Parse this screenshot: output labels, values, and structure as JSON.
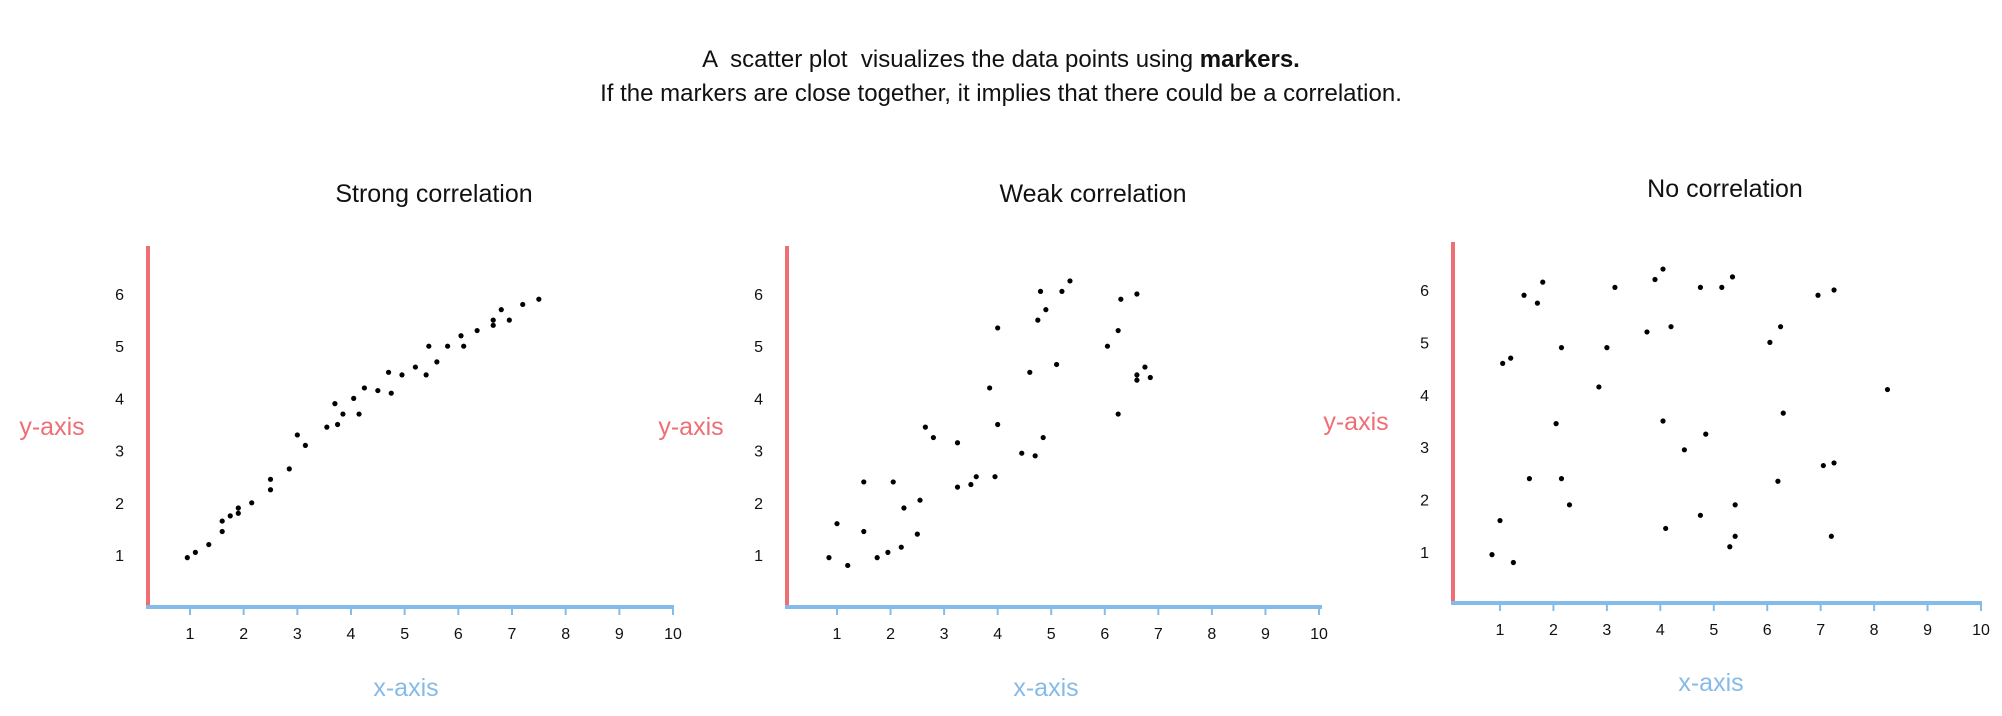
{
  "header": {
    "line1_prefix": "A  scatter plot  visualizes the data points using ",
    "line1_bold": "markers.",
    "line2": "If the markers are close together, it implies that there could be a correlation."
  },
  "colors": {
    "y_axis": "#ee6e73",
    "x_axis": "#85bbe9",
    "marker": "#000000",
    "text": "#111111"
  },
  "chart_data": [
    {
      "type": "scatter",
      "title": "Strong correlation",
      "xlabel": "x-axis",
      "ylabel": "y-axis",
      "xlim": [
        0.2,
        10
      ],
      "ylim": [
        0,
        6.6
      ],
      "xticks": [
        1,
        2,
        3,
        4,
        5,
        6,
        7,
        8,
        9,
        10
      ],
      "yticks": [
        1,
        2,
        3,
        4,
        5,
        6
      ],
      "grid": false,
      "points": [
        [
          0.95,
          0.95
        ],
        [
          1.1,
          1.05
        ],
        [
          1.35,
          1.2
        ],
        [
          1.6,
          1.45
        ],
        [
          1.6,
          1.65
        ],
        [
          1.75,
          1.75
        ],
        [
          1.9,
          1.8
        ],
        [
          1.9,
          1.9
        ],
        [
          2.15,
          2.0
        ],
        [
          2.5,
          2.25
        ],
        [
          2.5,
          2.45
        ],
        [
          2.85,
          2.65
        ],
        [
          3.0,
          3.3
        ],
        [
          3.15,
          3.1
        ],
        [
          3.55,
          3.45
        ],
        [
          3.7,
          3.9
        ],
        [
          3.75,
          3.5
        ],
        [
          3.85,
          3.7
        ],
        [
          4.05,
          4.0
        ],
        [
          4.15,
          3.7
        ],
        [
          4.25,
          4.2
        ],
        [
          4.5,
          4.15
        ],
        [
          4.7,
          4.5
        ],
        [
          4.75,
          4.1
        ],
        [
          4.95,
          4.45
        ],
        [
          5.2,
          4.6
        ],
        [
          5.4,
          4.45
        ],
        [
          5.45,
          5.0
        ],
        [
          5.6,
          4.7
        ],
        [
          5.8,
          5.0
        ],
        [
          6.05,
          5.2
        ],
        [
          6.1,
          5.0
        ],
        [
          6.35,
          5.3
        ],
        [
          6.65,
          5.4
        ],
        [
          6.65,
          5.5
        ],
        [
          6.8,
          5.7
        ],
        [
          6.95,
          5.5
        ],
        [
          7.2,
          5.8
        ],
        [
          7.5,
          5.9
        ]
      ]
    },
    {
      "type": "scatter",
      "title": "Weak correlation",
      "xlabel": "x-axis",
      "ylabel": "y-axis",
      "xlim": [
        0.2,
        10
      ],
      "ylim": [
        0,
        6.6
      ],
      "xticks": [
        1,
        2,
        3,
        4,
        5,
        6,
        7,
        8,
        9,
        10
      ],
      "yticks": [
        1,
        2,
        3,
        4,
        5,
        6
      ],
      "grid": false,
      "points": [
        [
          0.85,
          0.95
        ],
        [
          1.0,
          1.6
        ],
        [
          1.2,
          0.8
        ],
        [
          1.5,
          2.4
        ],
        [
          1.5,
          1.45
        ],
        [
          1.75,
          0.95
        ],
        [
          1.95,
          1.05
        ],
        [
          2.05,
          2.4
        ],
        [
          2.2,
          1.15
        ],
        [
          2.25,
          1.9
        ],
        [
          2.55,
          2.05
        ],
        [
          2.5,
          1.4
        ],
        [
          2.65,
          3.45
        ],
        [
          2.8,
          3.25
        ],
        [
          3.25,
          3.15
        ],
        [
          3.25,
          2.3
        ],
        [
          3.5,
          2.35
        ],
        [
          3.6,
          2.5
        ],
        [
          3.85,
          4.2
        ],
        [
          3.95,
          2.5
        ],
        [
          4.0,
          3.5
        ],
        [
          4.0,
          5.35
        ],
        [
          4.45,
          2.95
        ],
        [
          4.6,
          4.5
        ],
        [
          4.7,
          2.9
        ],
        [
          4.75,
          5.5
        ],
        [
          4.8,
          6.05
        ],
        [
          4.85,
          3.25
        ],
        [
          4.9,
          5.7
        ],
        [
          5.1,
          4.65
        ],
        [
          5.2,
          6.05
        ],
        [
          5.35,
          6.25
        ],
        [
          6.05,
          5.0
        ],
        [
          6.25,
          5.3
        ],
        [
          6.25,
          3.7
        ],
        [
          6.3,
          5.9
        ],
        [
          6.6,
          6.0
        ],
        [
          6.6,
          4.35
        ],
        [
          6.6,
          4.45
        ],
        [
          6.75,
          4.6
        ],
        [
          6.85,
          4.4
        ]
      ]
    },
    {
      "type": "scatter",
      "title": "No correlation",
      "xlabel": "x-axis",
      "ylabel": "y-axis",
      "xlim": [
        0.1,
        10
      ],
      "ylim": [
        0,
        6.6
      ],
      "xticks": [
        1,
        2,
        3,
        4,
        5,
        6,
        7,
        8,
        9,
        10
      ],
      "yticks": [
        1,
        2,
        3,
        4,
        5,
        6
      ],
      "grid": false,
      "points": [
        [
          0.85,
          0.95
        ],
        [
          1.0,
          1.6
        ],
        [
          1.05,
          4.6
        ],
        [
          1.2,
          4.7
        ],
        [
          1.25,
          0.8
        ],
        [
          1.45,
          5.9
        ],
        [
          1.55,
          2.4
        ],
        [
          1.7,
          5.75
        ],
        [
          1.8,
          6.15
        ],
        [
          2.05,
          3.45
        ],
        [
          2.15,
          2.4
        ],
        [
          2.15,
          4.9
        ],
        [
          2.3,
          1.9
        ],
        [
          2.85,
          4.15
        ],
        [
          3.0,
          4.9
        ],
        [
          3.15,
          6.05
        ],
        [
          3.75,
          5.2
        ],
        [
          3.9,
          6.2
        ],
        [
          4.05,
          6.4
        ],
        [
          4.05,
          3.5
        ],
        [
          4.1,
          1.45
        ],
        [
          4.2,
          5.3
        ],
        [
          4.45,
          2.95
        ],
        [
          4.75,
          6.05
        ],
        [
          4.75,
          1.7
        ],
        [
          4.85,
          3.25
        ],
        [
          5.15,
          6.05
        ],
        [
          5.3,
          1.1
        ],
        [
          5.35,
          6.25
        ],
        [
          5.4,
          1.9
        ],
        [
          5.4,
          1.3
        ],
        [
          6.05,
          5.0
        ],
        [
          6.2,
          2.35
        ],
        [
          6.25,
          5.3
        ],
        [
          6.3,
          3.65
        ],
        [
          6.95,
          5.9
        ],
        [
          7.05,
          2.65
        ],
        [
          7.2,
          1.3
        ],
        [
          7.25,
          2.7
        ],
        [
          7.25,
          6.0
        ],
        [
          8.25,
          4.1
        ]
      ]
    }
  ]
}
